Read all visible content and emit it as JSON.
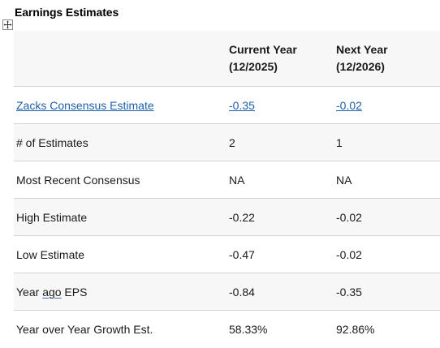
{
  "heading": "Earnings Estimates",
  "columns": {
    "current_year_line1": "Current Year",
    "current_year_line2": "(12/2025)",
    "next_year_line1": "Next Year",
    "next_year_line2": "(12/2026)"
  },
  "rows": [
    {
      "label": "Zacks Consensus Estimate",
      "current": "-0.35",
      "next": "-0.02"
    },
    {
      "label": "# of Estimates",
      "current": "2",
      "next": "1"
    },
    {
      "label": "Most Recent Consensus",
      "current": "NA",
      "next": "NA"
    },
    {
      "label": "High Estimate",
      "current": "-0.22",
      "next": "-0.02"
    },
    {
      "label": "Low Estimate",
      "current": "-0.47",
      "next": "-0.02"
    },
    {
      "label_part1": "Year ",
      "label_part2": "ago",
      "label_part3": " EPS",
      "current": "-0.84",
      "next": "-0.35"
    },
    {
      "label": "Year over Year Growth Est.",
      "current": "58.33%",
      "next": "92.86%"
    }
  ],
  "colors": {
    "link": "#1f5fa8",
    "row_shade": "#f7f7f7",
    "divider": "#d3d3d3"
  },
  "icons": {
    "table_handle": "move-cross-icon"
  }
}
